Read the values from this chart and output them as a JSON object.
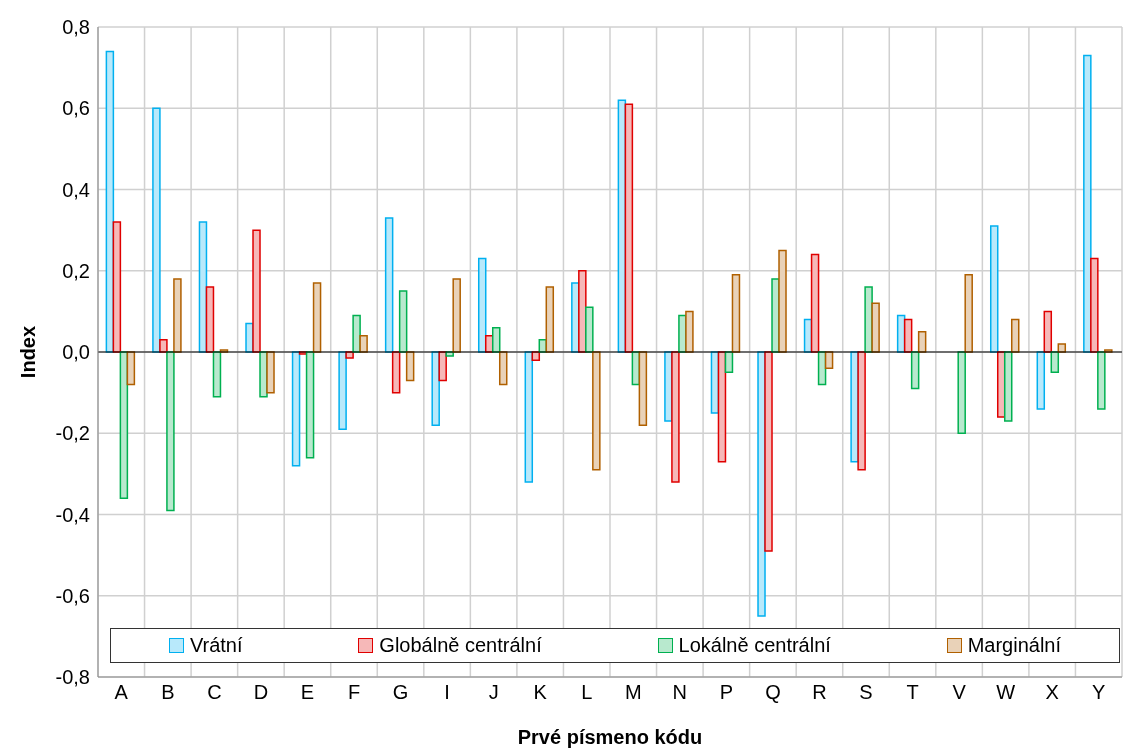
{
  "chart_data": {
    "type": "bar",
    "xlabel": "Prvé písmeno kódu",
    "ylabel": "Index",
    "categories": [
      "A",
      "B",
      "C",
      "D",
      "E",
      "F",
      "G",
      "I",
      "J",
      "K",
      "L",
      "M",
      "N",
      "P",
      "Q",
      "R",
      "S",
      "T",
      "V",
      "W",
      "X",
      "Y"
    ],
    "series": [
      {
        "name": "Vrátní",
        "color": "#00b0f0",
        "values": [
          0.74,
          0.6,
          0.32,
          0.07,
          -0.28,
          -0.19,
          0.33,
          -0.18,
          0.23,
          -0.32,
          0.17,
          0.62,
          -0.17,
          -0.15,
          -0.65,
          0.08,
          -0.27,
          0.09,
          0,
          0.31,
          -0.14,
          0.73
        ]
      },
      {
        "name": "Globálně centrální",
        "color": "#e00000",
        "values": [
          0.32,
          0.03,
          0.16,
          0.3,
          -0.005,
          -0.015,
          -0.1,
          -0.07,
          0.04,
          -0.02,
          0.2,
          0.61,
          -0.32,
          -0.27,
          -0.49,
          0.24,
          -0.29,
          0.08,
          0,
          -0.16,
          0.1,
          0.23
        ]
      },
      {
        "name": "Lokálně centrální",
        "color": "#00b050",
        "values": [
          -0.36,
          -0.39,
          -0.11,
          -0.11,
          -0.26,
          0.09,
          0.15,
          -0.01,
          0.06,
          0.03,
          0.11,
          -0.08,
          0.09,
          -0.05,
          0.18,
          -0.08,
          0.16,
          -0.09,
          -0.2,
          -0.17,
          -0.05,
          -0.14
        ]
      },
      {
        "name": "Marginální",
        "color": "#b06000",
        "values": [
          -0.08,
          0.18,
          0.005,
          -0.1,
          0.17,
          0.04,
          -0.07,
          0.18,
          -0.08,
          0.16,
          -0.29,
          -0.18,
          0.1,
          0.19,
          0.25,
          -0.04,
          0.12,
          0.05,
          0.19,
          0.08,
          0.02,
          0.005
        ]
      }
    ],
    "ylim": [
      -0.8,
      0.8
    ],
    "yticks": [
      {
        "value": -0.8,
        "label": "-0,8"
      },
      {
        "value": -0.6,
        "label": "-0,6"
      },
      {
        "value": -0.4,
        "label": "-0,4"
      },
      {
        "value": -0.2,
        "label": "-0,2"
      },
      {
        "value": 0,
        "label": "0,0"
      },
      {
        "value": 0.2,
        "label": "0,2"
      },
      {
        "value": 0.4,
        "label": "0,4"
      },
      {
        "value": 0.6,
        "label": "0,6"
      },
      {
        "value": 0.8,
        "label": "0,8"
      }
    ],
    "grid": true,
    "legend": "bottom"
  }
}
